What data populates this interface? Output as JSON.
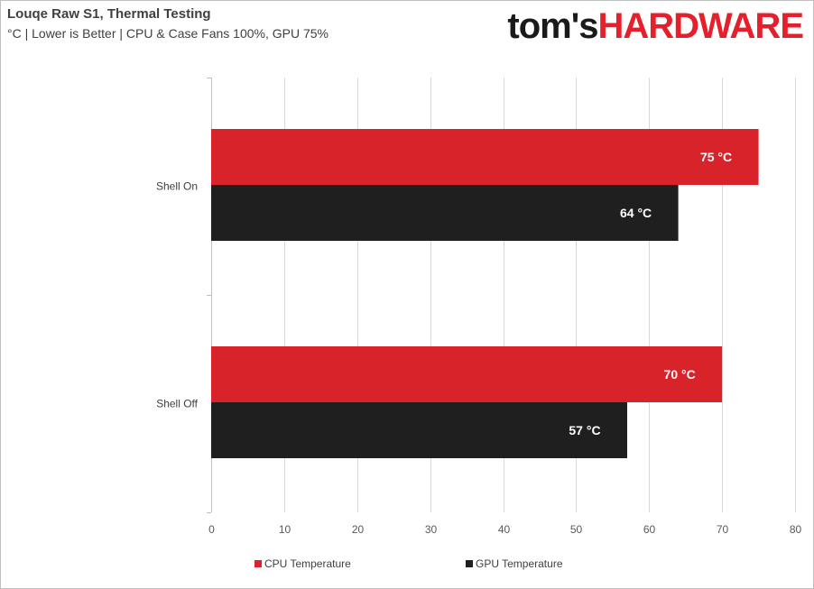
{
  "header": {
    "title": "Louqe Raw S1, Thermal Testing",
    "subtitle": "°C | Lower is Better | CPU & Case Fans 100%, GPU 75%",
    "logo_part1": "tom's",
    "logo_part2": "HARDWARE"
  },
  "colors": {
    "cpu": "#d9232b",
    "gpu": "#1f1f1f",
    "grid": "#d9d9d9",
    "logo_accent": "#e3202b"
  },
  "chart_data": {
    "type": "bar",
    "orientation": "horizontal",
    "title": "Louqe Raw S1, Thermal Testing",
    "subtitle": "°C | Lower is Better | CPU & Case Fans 100%, GPU 75%",
    "categories": [
      "Shell On",
      "Shell Off"
    ],
    "series": [
      {
        "name": "CPU Temperature",
        "values": [
          75,
          70
        ],
        "labels": [
          "75 °C",
          "70 °C"
        ]
      },
      {
        "name": "GPU Temperature",
        "values": [
          64,
          57
        ],
        "labels": [
          "64 °C",
          "57 °C"
        ]
      }
    ],
    "xlim": [
      0,
      80
    ],
    "xticks": [
      "0",
      "10",
      "20",
      "30",
      "40",
      "50",
      "60",
      "70",
      "80"
    ],
    "grid": "vertical",
    "legend_position": "bottom"
  },
  "legend": {
    "cpu_label": "CPU Temperature",
    "gpu_label": "GPU Temperature"
  }
}
